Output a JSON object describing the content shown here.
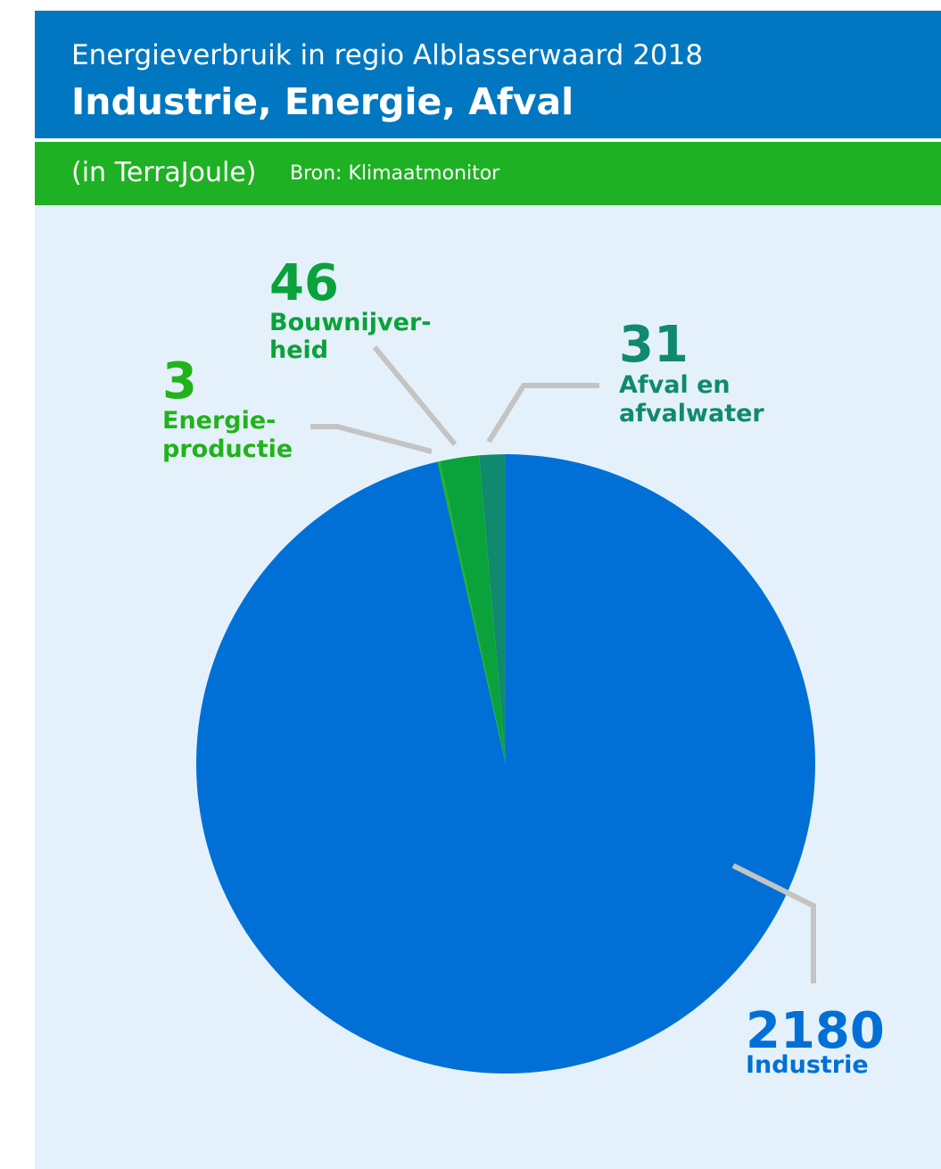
{
  "header": {
    "supertitle": "Energieverbruik in regio Alblasserwaard 2018",
    "title": "Industrie, Energie, Afval"
  },
  "subheader": {
    "unit": "(in TerraJoule)",
    "source": "Bron: Klimaatmonitor"
  },
  "colors": {
    "header_bg": "#0077c0",
    "subheader_bg": "#1fb124",
    "panel_bg": "#e5f1fa",
    "leader_line": "#c4c4c4"
  },
  "chart_data": {
    "type": "pie",
    "start_angle_deg": 0,
    "direction": "counterclockwise",
    "slices": [
      {
        "name": "Afval en afvalwater",
        "value": 31,
        "value_label": "31",
        "label_lines": [
          "Afval en",
          "afvalwater"
        ],
        "color": "#108a6e"
      },
      {
        "name": "Bouwnijverheid",
        "value": 46,
        "value_label": "46",
        "label_lines": [
          "Bouwnijver-",
          "heid"
        ],
        "color": "#0aa23a"
      },
      {
        "name": "Energieproductie",
        "value": 3,
        "value_label": "3",
        "label_lines": [
          "Energie-",
          "productie"
        ],
        "color": "#22b21c"
      },
      {
        "name": "Industrie",
        "value": 2180,
        "value_label": "2180",
        "label_lines": [
          "Industrie"
        ],
        "color": "#0070d6"
      }
    ]
  }
}
